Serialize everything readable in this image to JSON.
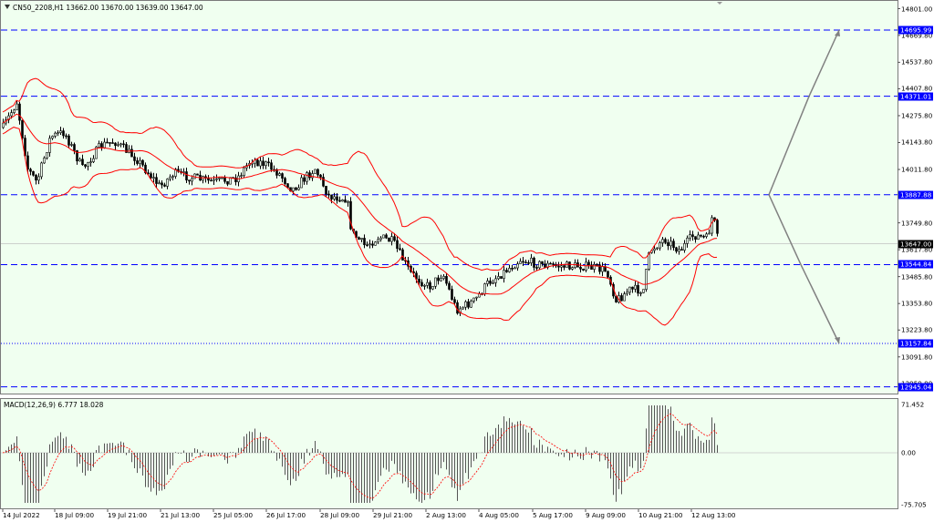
{
  "chart": {
    "symbol_line": "CN50_2208,H1  13662.00 13670.00 13639.00 13647.00",
    "price_axis": [
      "14801.00",
      "14669.80",
      "14537.80",
      "14407.80",
      "14275.80",
      "14143.80",
      "14011.80",
      "13749.80",
      "13617.80",
      "13485.80",
      "13353.80",
      "13223.80",
      "13091.80",
      "12959.80"
    ],
    "levels": [
      {
        "price": "14695.99",
        "color": "#0000ff",
        "style": "dashed"
      },
      {
        "price": "14371.01",
        "color": "#0000ff",
        "style": "dashed"
      },
      {
        "price": "13887.88",
        "color": "#0000ff",
        "style": "dashed"
      },
      {
        "price": "13544.84",
        "color": "#0000ff",
        "style": "dashed"
      },
      {
        "price": "13157.84",
        "color": "#0000ff",
        "style": "dotted"
      },
      {
        "price": "12945.04",
        "color": "#0000ff",
        "style": "dashed"
      }
    ],
    "current_price": "13647.00",
    "time_axis": [
      "14 Jul 2022",
      "18 Jul 09:00",
      "19 Jul 21:00",
      "21 Jul 13:00",
      "25 Jul 05:00",
      "26 Jul 17:00",
      "28 Jul 09:00",
      "29 Jul 21:00",
      "2 Aug 13:00",
      "4 Aug 05:00",
      "5 Aug 17:00",
      "9 Aug 09:00",
      "10 Aug 21:00",
      "12 Aug 13:00"
    ],
    "macd_title": "MACD(12,26,9) 6.777 18.028",
    "macd_axis": [
      "71.452",
      "0.00",
      "-75.705"
    ],
    "colors": {
      "background": "#f0fff0",
      "bands": "#ff0000",
      "levels": "#0000ff",
      "candles": "#000000",
      "projection": "#808080",
      "macd_signal": "#ff0000"
    }
  }
}
